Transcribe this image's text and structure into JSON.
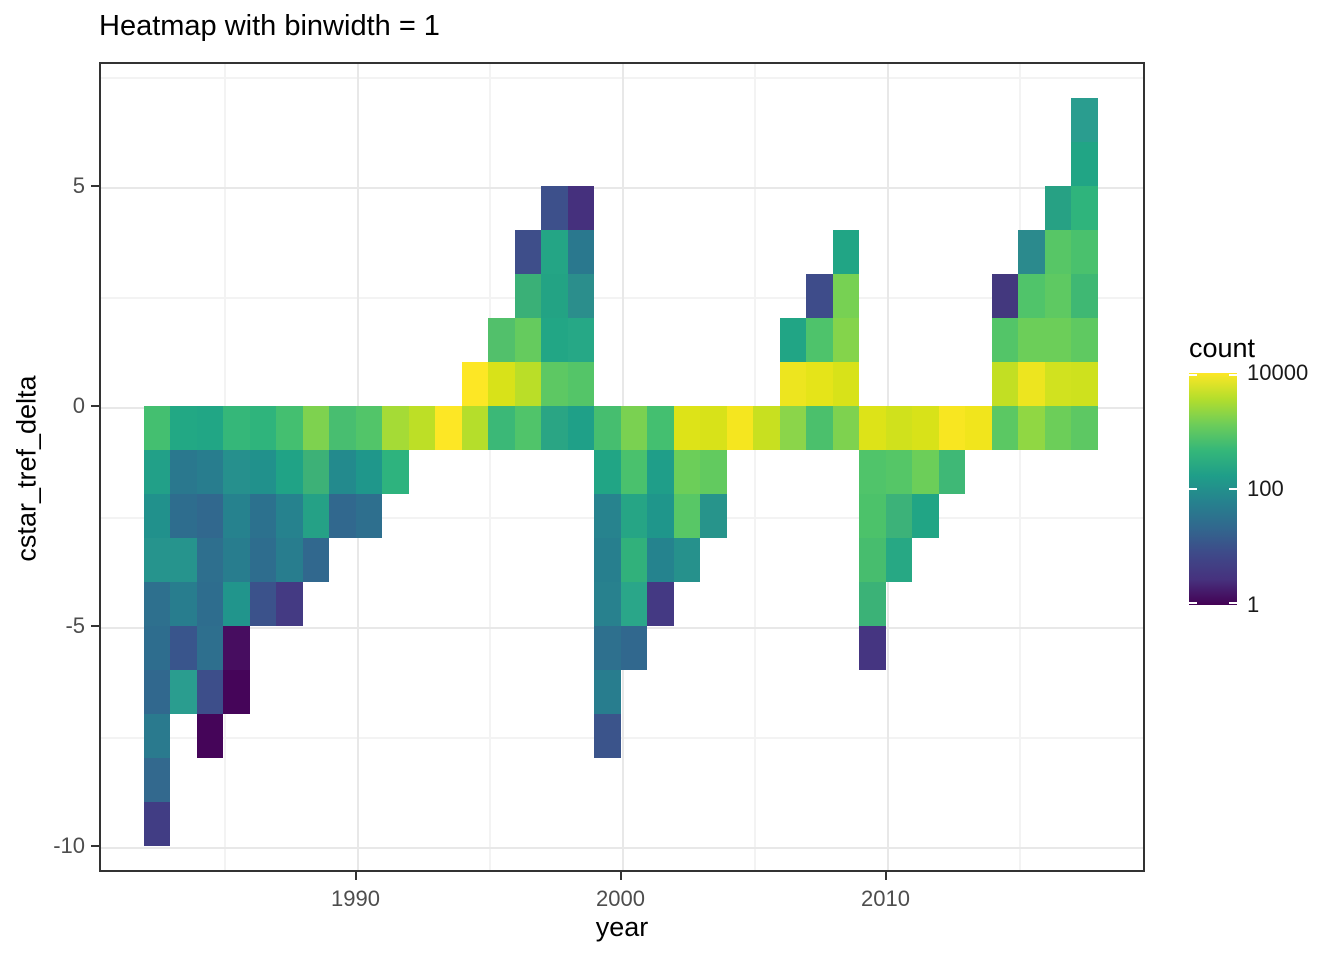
{
  "title": "Heatmap with binwidth = 1",
  "x_axis": {
    "label": "year",
    "major_ticks": [
      1990,
      2000,
      2010
    ],
    "minor_ticks": [
      1985,
      1995,
      2005,
      2015
    ],
    "range": [
      1980.3,
      2019.9
    ]
  },
  "y_axis": {
    "label": "cstar_tref_delta",
    "major_ticks": [
      5,
      0,
      -5,
      -10
    ],
    "minor_ticks": [
      7.5,
      2.5,
      -2.5,
      -7.5
    ],
    "range": [
      -10.6,
      7.8
    ]
  },
  "legend": {
    "title": "count",
    "tick_labels": [
      "10000",
      "100",
      "1"
    ],
    "tick_fractions_from_top": [
      0,
      0.5,
      1
    ],
    "scale": "log10",
    "gradient_stops_bottom_to_top": [
      "#440154",
      "#46327E",
      "#3E4A89",
      "#31688E",
      "#26828E",
      "#1F9E89",
      "#35B779",
      "#6DCD59",
      "#B4DE2C",
      "#FDE725"
    ]
  },
  "chart_data": {
    "type": "heatmap",
    "x": "year",
    "y": "cstar_tref_delta",
    "value": "count",
    "binwidth": 1,
    "note": "each cell spans 1 year x 1 delta unit; ymin = bottom edge of cell; count is approximate (decoded from viridis log color scale)",
    "columns": [
      {
        "year": 1982,
        "cells": [
          [
            -1,
            "#44BF70",
            600
          ],
          [
            -2,
            "#22A088",
            250
          ],
          [
            -3,
            "#21918C",
            100
          ],
          [
            -4,
            "#26948D",
            100
          ],
          [
            -5,
            "#2E708E",
            35
          ],
          [
            -6,
            "#2E6D8E",
            25
          ],
          [
            -7,
            "#31688E",
            22
          ],
          [
            -8,
            "#2A7A8E",
            40
          ],
          [
            -9,
            "#33698E",
            24
          ],
          [
            -10,
            "#413D84",
            8
          ]
        ]
      },
      {
        "year": 1983,
        "cells": [
          [
            -1,
            "#22A884",
            250
          ],
          [
            -2,
            "#2A788E",
            38
          ],
          [
            -3,
            "#2E6D8E",
            25
          ],
          [
            -4,
            "#26948D",
            100
          ],
          [
            -5,
            "#287D8E",
            45
          ],
          [
            -6,
            "#39558C",
            9
          ],
          [
            -7,
            "#2A9D8F",
            170
          ]
        ]
      },
      {
        "year": 1984,
        "cells": [
          [
            -1,
            "#21A685",
            250
          ],
          [
            -2,
            "#287D8E",
            45
          ],
          [
            -3,
            "#31688E",
            22
          ],
          [
            -4,
            "#2E6F8E",
            26
          ],
          [
            -5,
            "#2E6D8E",
            25
          ],
          [
            -6,
            "#2E6F8E",
            26
          ],
          [
            -7,
            "#3D4E8A",
            10
          ],
          [
            -8,
            "#450559",
            1
          ]
        ]
      },
      {
        "year": 1985,
        "cells": [
          [
            -1,
            "#35B779",
            430
          ],
          [
            -2,
            "#26908D",
            90
          ],
          [
            -3,
            "#26828E",
            48
          ],
          [
            -4,
            "#287D8E",
            45
          ],
          [
            -5,
            "#21958C",
            130
          ],
          [
            -6,
            "#470D60",
            2
          ],
          [
            -7,
            "#450559",
            1
          ]
        ]
      },
      {
        "year": 1986,
        "cells": [
          [
            -1,
            "#2FB47C",
            400
          ],
          [
            -2,
            "#21918C",
            100
          ],
          [
            -3,
            "#2C718E",
            33
          ],
          [
            -4,
            "#2E6D8E",
            25
          ],
          [
            -5,
            "#3B528B",
            11
          ]
        ]
      },
      {
        "year": 1987,
        "cells": [
          [
            -1,
            "#44BF70",
            600
          ],
          [
            -2,
            "#20A386",
            240
          ],
          [
            -3,
            "#26828E",
            48
          ],
          [
            -4,
            "#287D8E",
            45
          ],
          [
            -5,
            "#443A83",
            7
          ]
        ]
      },
      {
        "year": 1988,
        "cells": [
          [
            -1,
            "#7ED24F",
            1700
          ],
          [
            -2,
            "#3DB177",
            470
          ],
          [
            -3,
            "#25A186",
            230
          ],
          [
            -4,
            "#31688E",
            22
          ]
        ]
      },
      {
        "year": 1989,
        "cells": [
          [
            -1,
            "#48BE70",
            640
          ],
          [
            -2,
            "#238A8D",
            70
          ],
          [
            -3,
            "#31688E",
            22
          ]
        ]
      },
      {
        "year": 1990,
        "cells": [
          [
            -1,
            "#52C569",
            800
          ],
          [
            -2,
            "#1F978B",
            160
          ],
          [
            -3,
            "#2E6F8E",
            26
          ]
        ]
      },
      {
        "year": 1991,
        "cells": [
          [
            -1,
            "#A5DB36",
            3100
          ],
          [
            -2,
            "#2EB37E",
            390
          ]
        ]
      },
      {
        "year": 1992,
        "cells": [
          [
            -1,
            "#BDDF26",
            4200
          ]
        ]
      },
      {
        "year": 1993,
        "cells": [
          [
            -1,
            "#FDE725",
            10000
          ]
        ]
      },
      {
        "year": 1994,
        "cells": [
          [
            0,
            "#FDE725",
            9500
          ],
          [
            -1,
            "#B5DE2B",
            3700
          ]
        ]
      },
      {
        "year": 1995,
        "cells": [
          [
            1,
            "#52C06B",
            780
          ],
          [
            0,
            "#D8E219",
            5600
          ],
          [
            -1,
            "#3BB877",
            460
          ]
        ]
      },
      {
        "year": 1996,
        "cells": [
          [
            3,
            "#3E4E8A",
            9
          ],
          [
            2,
            "#3AB077",
            440
          ],
          [
            1,
            "#65CB5E",
            1200
          ],
          [
            0,
            "#BADE28",
            4100
          ],
          [
            -1,
            "#50C46A",
            760
          ]
        ]
      },
      {
        "year": 1997,
        "cells": [
          [
            4,
            "#3D508B",
            9
          ],
          [
            3,
            "#24A585",
            260
          ],
          [
            2,
            "#23A384",
            255
          ],
          [
            1,
            "#22A685",
            250
          ],
          [
            0,
            "#5DC863",
            1000
          ],
          [
            -1,
            "#2AA584",
            250
          ]
        ]
      },
      {
        "year": 1998,
        "cells": [
          [
            4,
            "#45307D",
            5
          ],
          [
            3,
            "#2A788E",
            38
          ],
          [
            2,
            "#2B8E8C",
            85
          ],
          [
            1,
            "#26A886",
            270
          ],
          [
            0,
            "#54C568",
            820
          ],
          [
            -1,
            "#1FA088",
            200
          ]
        ]
      },
      {
        "year": 1999,
        "cells": [
          [
            -1,
            "#46BE6F",
            620
          ],
          [
            -2,
            "#21A585",
            250
          ],
          [
            -3,
            "#27838E",
            47
          ],
          [
            -4,
            "#277F8E",
            44
          ],
          [
            -5,
            "#28818E",
            46
          ],
          [
            -6,
            "#2E708E",
            35
          ],
          [
            -7,
            "#287D8E",
            45
          ],
          [
            -8,
            "#3B548B",
            9
          ]
        ]
      },
      {
        "year": 2000,
        "cells": [
          [
            -1,
            "#7AD151",
            1600
          ],
          [
            -2,
            "#4AC16D",
            680
          ],
          [
            -3,
            "#26A585",
            255
          ],
          [
            -4,
            "#31B17B",
            410
          ],
          [
            -5,
            "#2AA689",
            260
          ],
          [
            -6,
            "#31688E",
            22
          ]
        ]
      },
      {
        "year": 2001,
        "cells": [
          [
            -1,
            "#44BF70",
            600
          ],
          [
            -2,
            "#1F9E89",
            195
          ],
          [
            -3,
            "#1F968B",
            150
          ],
          [
            -4,
            "#25838E",
            48
          ],
          [
            -5,
            "#443983",
            7
          ]
        ]
      },
      {
        "year": 2002,
        "cells": [
          [
            -1,
            "#DDE318",
            6200
          ],
          [
            -2,
            "#6CCE59",
            1300
          ],
          [
            -3,
            "#58C766",
            930
          ],
          [
            -4,
            "#26918C",
            95
          ]
        ]
      },
      {
        "year": 2003,
        "cells": [
          [
            -1,
            "#D8E219",
            5600
          ],
          [
            -2,
            "#62CA5F",
            1100
          ],
          [
            -3,
            "#27948B",
            105
          ]
        ]
      },
      {
        "year": 2004,
        "cells": [
          [
            -1,
            "#F5E61F",
            8600
          ]
        ]
      },
      {
        "year": 2005,
        "cells": [
          [
            -1,
            "#C8E020",
            4800
          ]
        ]
      },
      {
        "year": 2006,
        "cells": [
          [
            1,
            "#21A585",
            250
          ],
          [
            0,
            "#EDE51F",
            7800
          ],
          [
            -1,
            "#8BD54A",
            1900
          ]
        ]
      },
      {
        "year": 2007,
        "cells": [
          [
            2,
            "#3E4C8A",
            9
          ],
          [
            1,
            "#4EC36B",
            730
          ],
          [
            0,
            "#E5E419",
            7000
          ],
          [
            -1,
            "#4BC06C",
            700
          ]
        ]
      },
      {
        "year": 2008,
        "cells": [
          [
            3,
            "#21A585",
            250
          ],
          [
            2,
            "#77D153",
            1500
          ],
          [
            1,
            "#84D44B",
            1850
          ],
          [
            0,
            "#D8E219",
            5600
          ],
          [
            -1,
            "#7ED24F",
            1700
          ]
        ]
      },
      {
        "year": 2009,
        "cells": [
          [
            -1,
            "#DDE318",
            6200
          ],
          [
            -2,
            "#50C46A",
            760
          ],
          [
            -3,
            "#4CC26A",
            720
          ],
          [
            -4,
            "#47BD6E",
            630
          ],
          [
            -5,
            "#3BB277",
            450
          ],
          [
            -6,
            "#453581",
            5
          ]
        ]
      },
      {
        "year": 2010,
        "cells": [
          [
            -1,
            "#D0E11C",
            5200
          ],
          [
            -2,
            "#55C667",
            840
          ],
          [
            -3,
            "#3CB279",
            455
          ],
          [
            -4,
            "#27A884",
            265
          ]
        ]
      },
      {
        "year": 2011,
        "cells": [
          [
            -1,
            "#D8E219",
            5600
          ],
          [
            -2,
            "#6CCE59",
            1300
          ],
          [
            -3,
            "#21A585",
            250
          ]
        ]
      },
      {
        "year": 2012,
        "cells": [
          [
            -1,
            "#F8E621",
            9000
          ],
          [
            -2,
            "#3FB876",
            500
          ]
        ]
      },
      {
        "year": 2013,
        "cells": [
          [
            -1,
            "#F1E51C",
            8300
          ]
        ]
      },
      {
        "year": 2014,
        "cells": [
          [
            2,
            "#43387E",
            6
          ],
          [
            1,
            "#53C568",
            810
          ],
          [
            0,
            "#C2DF23",
            4400
          ],
          [
            -1,
            "#5BC863",
            940
          ]
        ]
      },
      {
        "year": 2015,
        "cells": [
          [
            3,
            "#2B8A8D",
            72
          ],
          [
            2,
            "#50C46A",
            760
          ],
          [
            1,
            "#6CCE59",
            1300
          ],
          [
            0,
            "#EDE51F",
            7800
          ],
          [
            -1,
            "#90D743",
            2100
          ]
        ]
      },
      {
        "year": 2016,
        "cells": [
          [
            4,
            "#27A184",
            240
          ],
          [
            3,
            "#57C666",
            880
          ],
          [
            2,
            "#5EC962",
            990
          ],
          [
            1,
            "#6CCE59",
            1300
          ],
          [
            0,
            "#D1E21F",
            5300
          ],
          [
            -1,
            "#6CCE59",
            1300
          ]
        ]
      },
      {
        "year": 2017,
        "cells": [
          [
            6,
            "#2A9D8F",
            170
          ],
          [
            5,
            "#21A585",
            250
          ],
          [
            4,
            "#2FB47C",
            400
          ],
          [
            3,
            "#4AC16D",
            680
          ],
          [
            2,
            "#3FB873",
            490
          ],
          [
            1,
            "#5FC961",
            1000
          ],
          [
            0,
            "#CEE11E",
            5100
          ],
          [
            -1,
            "#5DC863",
            1000
          ]
        ]
      }
    ]
  }
}
